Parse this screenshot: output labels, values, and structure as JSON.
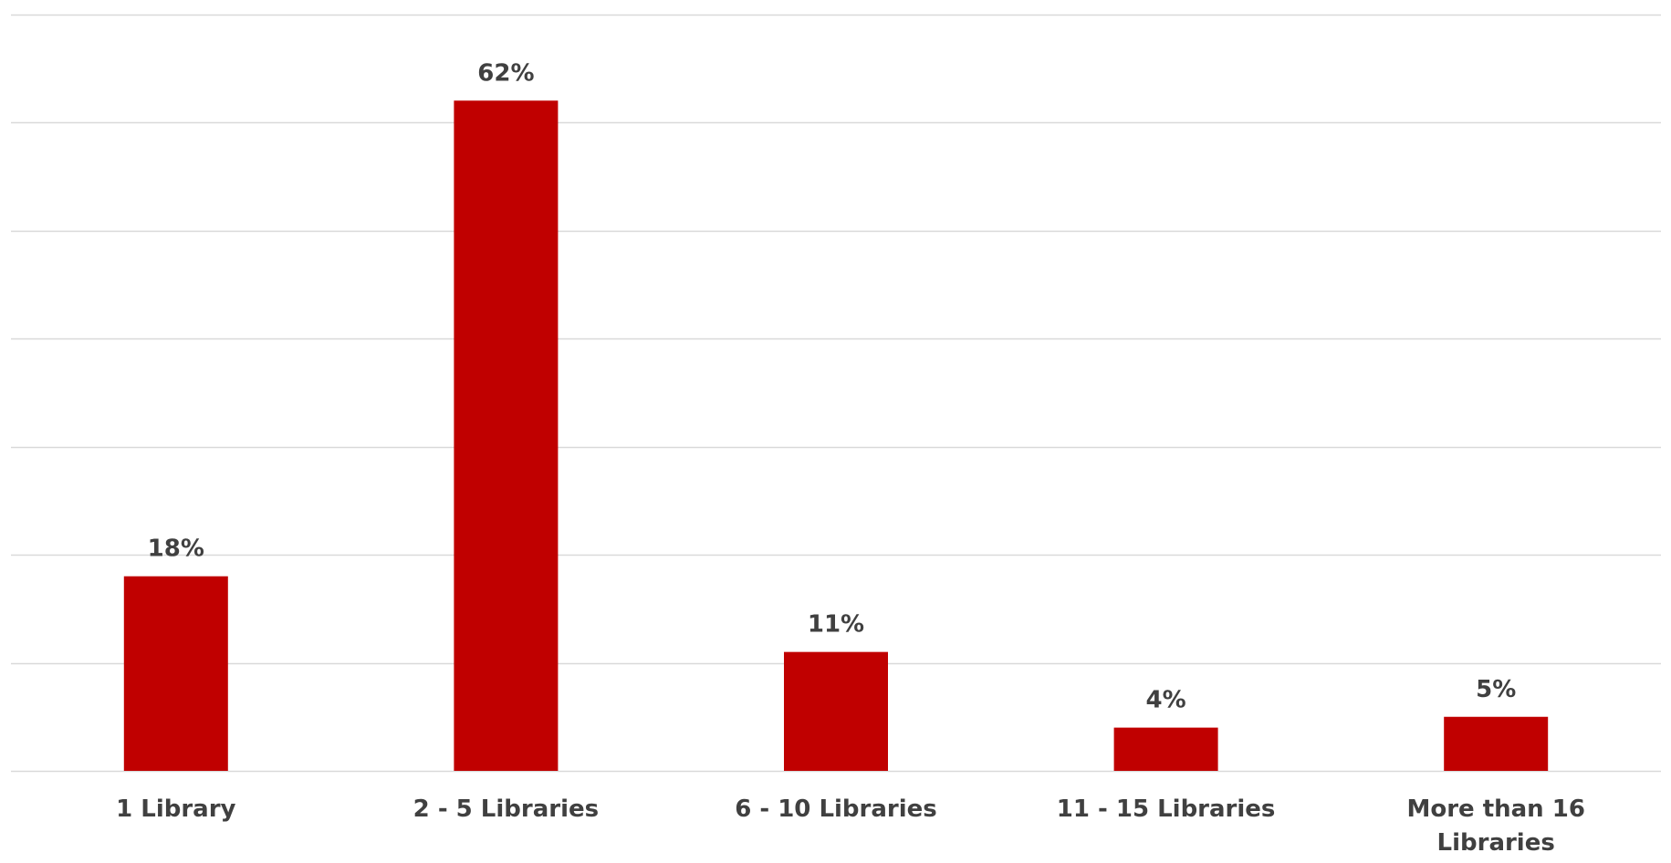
{
  "chart_data": {
    "type": "bar",
    "categories": [
      "1 Library",
      "2 - 5 Libraries",
      "6 - 10 Libraries",
      "11 - 15 Libraries",
      "More than 16 Libraries"
    ],
    "category_label_lines": [
      [
        "1 Library"
      ],
      [
        "2 - 5 Libraries"
      ],
      [
        "6 - 10 Libraries"
      ],
      [
        "11 - 15 Libraries"
      ],
      [
        "More than 16",
        "Libraries"
      ]
    ],
    "values": [
      18,
      62,
      11,
      4,
      5
    ],
    "data_labels": [
      "18%",
      "62%",
      "11%",
      "4%",
      "5%"
    ],
    "title": "",
    "xlabel": "",
    "ylabel": "",
    "ylim": [
      0,
      70
    ],
    "grid": true,
    "legend": "none",
    "bar_color": "#C00000",
    "grid_color": "#D9D9D9",
    "label_color": "#404040"
  }
}
